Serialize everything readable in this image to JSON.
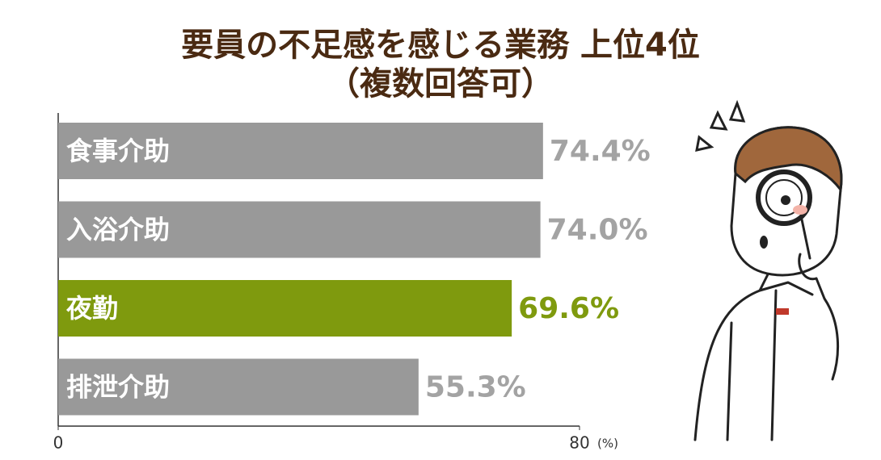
{
  "chart_data": {
    "type": "barh",
    "title": "要員の不足感を感じる業務 上位4位",
    "subtitle": "（複数回答可）",
    "categories": [
      "食事介助",
      "入浴介助",
      "夜勤",
      "排泄介助"
    ],
    "values": [
      74.4,
      74.0,
      69.6,
      55.3
    ],
    "value_labels": [
      "74.4%",
      "74.0%",
      "69.6%",
      "55.3%"
    ],
    "colors": [
      "#999999",
      "#999999",
      "#7f9a0e",
      "#999999"
    ],
    "label_colors": [
      "#a3a3a3",
      "#a3a3a3",
      "#7f9a0e",
      "#a3a3a3"
    ],
    "xlim": [
      0,
      80
    ],
    "xticks": [
      0,
      80
    ],
    "x_label": "(%)"
  }
}
